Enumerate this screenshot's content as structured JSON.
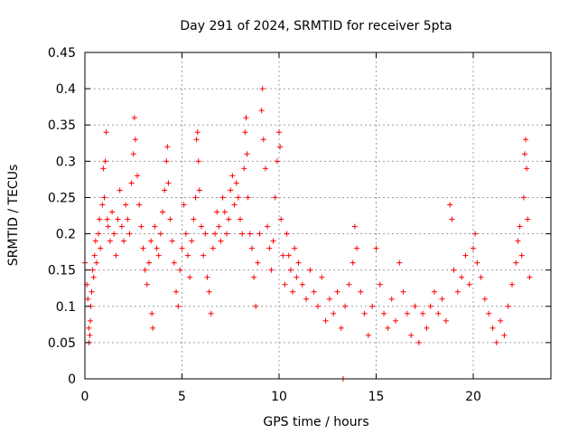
{
  "chart_data": {
    "type": "scatter",
    "title": "Day 291 of 2024, SRMTID for receiver 5pta",
    "xlabel": "GPS time / hours",
    "ylabel": "SRMTID / TECUs",
    "xlim": [
      0,
      24
    ],
    "ylim": [
      0,
      0.45
    ],
    "xticks": [
      0,
      5,
      10,
      15,
      20
    ],
    "yticks": [
      0,
      0.05,
      0.1,
      0.15,
      0.2,
      0.25,
      0.3,
      0.35,
      0.4,
      0.45
    ],
    "xtick_labels": [
      "0",
      "5",
      "10",
      "15",
      "20"
    ],
    "ytick_labels": [
      "0",
      "0.05",
      "0.1",
      "0.15",
      "0.2",
      "0.25",
      "0.3",
      "0.35",
      "0.4",
      "0.45"
    ],
    "grid": true,
    "marker": "+",
    "color": "#ff0000",
    "series": [
      {
        "name": "SRMTID",
        "points": [
          [
            0.0,
            0.16
          ],
          [
            0.1,
            0.13
          ],
          [
            0.15,
            0.11
          ],
          [
            0.2,
            0.07
          ],
          [
            0.22,
            0.05
          ],
          [
            0.25,
            0.06
          ],
          [
            0.28,
            0.08
          ],
          [
            0.3,
            0.1
          ],
          [
            0.35,
            0.12
          ],
          [
            0.4,
            0.15
          ],
          [
            0.45,
            0.14
          ],
          [
            0.5,
            0.17
          ],
          [
            0.55,
            0.19
          ],
          [
            0.6,
            0.16
          ],
          [
            0.7,
            0.2
          ],
          [
            0.75,
            0.22
          ],
          [
            0.8,
            0.18
          ],
          [
            0.9,
            0.24
          ],
          [
            0.95,
            0.29
          ],
          [
            1.0,
            0.25
          ],
          [
            1.05,
            0.3
          ],
          [
            1.1,
            0.34
          ],
          [
            1.15,
            0.22
          ],
          [
            1.2,
            0.21
          ],
          [
            1.3,
            0.19
          ],
          [
            1.4,
            0.23
          ],
          [
            1.5,
            0.2
          ],
          [
            1.6,
            0.17
          ],
          [
            1.7,
            0.22
          ],
          [
            1.8,
            0.26
          ],
          [
            1.9,
            0.21
          ],
          [
            2.0,
            0.19
          ],
          [
            2.1,
            0.24
          ],
          [
            2.2,
            0.22
          ],
          [
            2.3,
            0.2
          ],
          [
            2.4,
            0.27
          ],
          [
            2.5,
            0.31
          ],
          [
            2.55,
            0.36
          ],
          [
            2.6,
            0.33
          ],
          [
            2.7,
            0.28
          ],
          [
            2.8,
            0.24
          ],
          [
            2.9,
            0.21
          ],
          [
            3.0,
            0.18
          ],
          [
            3.1,
            0.15
          ],
          [
            3.2,
            0.13
          ],
          [
            3.3,
            0.16
          ],
          [
            3.4,
            0.19
          ],
          [
            3.45,
            0.09
          ],
          [
            3.5,
            0.07
          ],
          [
            3.6,
            0.21
          ],
          [
            3.7,
            0.18
          ],
          [
            3.8,
            0.17
          ],
          [
            3.9,
            0.2
          ],
          [
            4.0,
            0.23
          ],
          [
            4.1,
            0.26
          ],
          [
            4.2,
            0.3
          ],
          [
            4.25,
            0.32
          ],
          [
            4.3,
            0.27
          ],
          [
            4.4,
            0.22
          ],
          [
            4.5,
            0.19
          ],
          [
            4.6,
            0.16
          ],
          [
            4.7,
            0.12
          ],
          [
            4.8,
            0.1
          ],
          [
            4.9,
            0.15
          ],
          [
            5.0,
            0.18
          ],
          [
            5.1,
            0.24
          ],
          [
            5.2,
            0.2
          ],
          [
            5.3,
            0.17
          ],
          [
            5.4,
            0.14
          ],
          [
            5.5,
            0.19
          ],
          [
            5.6,
            0.22
          ],
          [
            5.7,
            0.25
          ],
          [
            5.75,
            0.33
          ],
          [
            5.8,
            0.34
          ],
          [
            5.85,
            0.3
          ],
          [
            5.9,
            0.26
          ],
          [
            6.0,
            0.21
          ],
          [
            6.1,
            0.17
          ],
          [
            6.2,
            0.2
          ],
          [
            6.3,
            0.14
          ],
          [
            6.4,
            0.12
          ],
          [
            6.5,
            0.09
          ],
          [
            6.6,
            0.18
          ],
          [
            6.7,
            0.2
          ],
          [
            6.8,
            0.23
          ],
          [
            6.9,
            0.21
          ],
          [
            7.0,
            0.19
          ],
          [
            7.1,
            0.25
          ],
          [
            7.2,
            0.23
          ],
          [
            7.3,
            0.2
          ],
          [
            7.4,
            0.22
          ],
          [
            7.5,
            0.26
          ],
          [
            7.6,
            0.28
          ],
          [
            7.7,
            0.24
          ],
          [
            7.8,
            0.27
          ],
          [
            7.9,
            0.25
          ],
          [
            8.0,
            0.22
          ],
          [
            8.1,
            0.2
          ],
          [
            8.2,
            0.29
          ],
          [
            8.25,
            0.34
          ],
          [
            8.3,
            0.36
          ],
          [
            8.35,
            0.31
          ],
          [
            8.4,
            0.25
          ],
          [
            8.5,
            0.2
          ],
          [
            8.6,
            0.18
          ],
          [
            8.7,
            0.14
          ],
          [
            8.8,
            0.1
          ],
          [
            8.9,
            0.16
          ],
          [
            9.0,
            0.2
          ],
          [
            9.1,
            0.37
          ],
          [
            9.15,
            0.4
          ],
          [
            9.2,
            0.33
          ],
          [
            9.3,
            0.29
          ],
          [
            9.4,
            0.21
          ],
          [
            9.5,
            0.18
          ],
          [
            9.6,
            0.15
          ],
          [
            9.7,
            0.19
          ],
          [
            9.8,
            0.25
          ],
          [
            9.9,
            0.3
          ],
          [
            10.0,
            0.34
          ],
          [
            10.05,
            0.32
          ],
          [
            10.1,
            0.22
          ],
          [
            10.2,
            0.17
          ],
          [
            10.3,
            0.13
          ],
          [
            10.4,
            0.2
          ],
          [
            10.5,
            0.17
          ],
          [
            10.6,
            0.15
          ],
          [
            10.7,
            0.12
          ],
          [
            10.8,
            0.18
          ],
          [
            10.9,
            0.14
          ],
          [
            11.0,
            0.16
          ],
          [
            11.2,
            0.13
          ],
          [
            11.4,
            0.11
          ],
          [
            11.6,
            0.15
          ],
          [
            11.8,
            0.12
          ],
          [
            12.0,
            0.1
          ],
          [
            12.2,
            0.14
          ],
          [
            12.4,
            0.08
          ],
          [
            12.6,
            0.11
          ],
          [
            12.8,
            0.09
          ],
          [
            13.0,
            0.12
          ],
          [
            13.2,
            0.07
          ],
          [
            13.3,
            0.0
          ],
          [
            13.4,
            0.1
          ],
          [
            13.6,
            0.13
          ],
          [
            13.8,
            0.16
          ],
          [
            13.9,
            0.21
          ],
          [
            14.0,
            0.18
          ],
          [
            14.2,
            0.12
          ],
          [
            14.4,
            0.09
          ],
          [
            14.6,
            0.06
          ],
          [
            14.8,
            0.1
          ],
          [
            15.0,
            0.18
          ],
          [
            15.2,
            0.13
          ],
          [
            15.4,
            0.09
          ],
          [
            15.6,
            0.07
          ],
          [
            15.8,
            0.11
          ],
          [
            16.0,
            0.08
          ],
          [
            16.2,
            0.16
          ],
          [
            16.4,
            0.12
          ],
          [
            16.6,
            0.09
          ],
          [
            16.8,
            0.06
          ],
          [
            17.0,
            0.1
          ],
          [
            17.2,
            0.05
          ],
          [
            17.4,
            0.09
          ],
          [
            17.6,
            0.07
          ],
          [
            17.8,
            0.1
          ],
          [
            18.0,
            0.12
          ],
          [
            18.2,
            0.09
          ],
          [
            18.4,
            0.11
          ],
          [
            18.6,
            0.08
          ],
          [
            18.8,
            0.24
          ],
          [
            18.9,
            0.22
          ],
          [
            19.0,
            0.15
          ],
          [
            19.2,
            0.12
          ],
          [
            19.4,
            0.14
          ],
          [
            19.6,
            0.17
          ],
          [
            19.8,
            0.13
          ],
          [
            20.0,
            0.18
          ],
          [
            20.1,
            0.2
          ],
          [
            20.2,
            0.16
          ],
          [
            20.4,
            0.14
          ],
          [
            20.6,
            0.11
          ],
          [
            20.8,
            0.09
          ],
          [
            21.0,
            0.07
          ],
          [
            21.2,
            0.05
          ],
          [
            21.4,
            0.08
          ],
          [
            21.6,
            0.06
          ],
          [
            21.8,
            0.1
          ],
          [
            22.0,
            0.13
          ],
          [
            22.2,
            0.16
          ],
          [
            22.3,
            0.19
          ],
          [
            22.4,
            0.21
          ],
          [
            22.5,
            0.17
          ],
          [
            22.6,
            0.25
          ],
          [
            22.65,
            0.31
          ],
          [
            22.7,
            0.33
          ],
          [
            22.75,
            0.29
          ],
          [
            22.8,
            0.22
          ],
          [
            22.9,
            0.14
          ]
        ]
      }
    ]
  }
}
